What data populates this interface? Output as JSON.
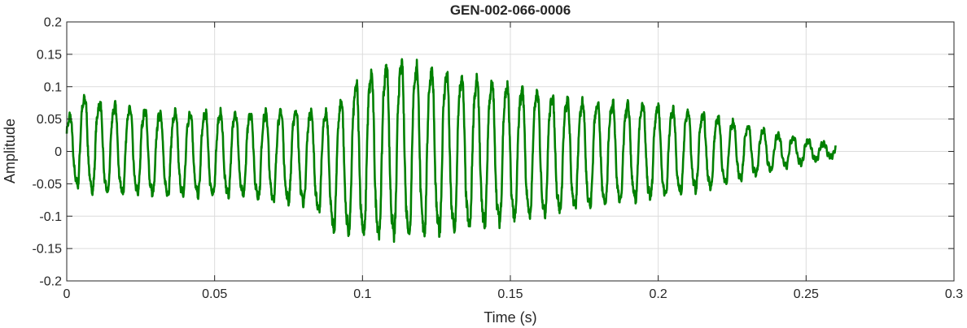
{
  "chart_data": {
    "type": "line",
    "title": "GEN-002-066-0006",
    "xlabel": "Time (s)",
    "ylabel": "Amplitude",
    "xlim": [
      0,
      0.3
    ],
    "ylim": [
      -0.2,
      0.2
    ],
    "xticks": [
      0,
      0.05,
      0.1,
      0.15,
      0.2,
      0.25,
      0.3
    ],
    "xtick_labels": [
      "0",
      "0.05",
      "0.1",
      "0.15",
      "0.2",
      "0.25",
      "0.3"
    ],
    "yticks": [
      -0.2,
      -0.15,
      -0.1,
      -0.05,
      0,
      0.05,
      0.1,
      0.15,
      0.2
    ],
    "ytick_labels": [
      "-0.2",
      "-0.15",
      "-0.1",
      "-0.05",
      "0",
      "0.05",
      "0.1",
      "0.15",
      "0.2"
    ],
    "grid": true,
    "legend": "none",
    "line_color": "#008000",
    "signal": {
      "t_start": 0,
      "t_end": 0.26,
      "oscillation_period_s": 0.0051,
      "envelope": [
        {
          "t": 0.0,
          "upper": 0.05,
          "lower": -0.04
        },
        {
          "t": 0.004,
          "upper": 0.097,
          "lower": -0.065
        },
        {
          "t": 0.01,
          "upper": 0.085,
          "lower": -0.073
        },
        {
          "t": 0.03,
          "upper": 0.07,
          "lower": -0.075
        },
        {
          "t": 0.06,
          "upper": 0.068,
          "lower": -0.078
        },
        {
          "t": 0.08,
          "upper": 0.075,
          "lower": -0.09
        },
        {
          "t": 0.088,
          "upper": 0.07,
          "lower": -0.11
        },
        {
          "t": 0.09,
          "upper": 0.08,
          "lower": -0.135
        },
        {
          "t": 0.1,
          "upper": 0.13,
          "lower": -0.145
        },
        {
          "t": 0.11,
          "upper": 0.155,
          "lower": -0.148
        },
        {
          "t": 0.12,
          "upper": 0.15,
          "lower": -0.145
        },
        {
          "t": 0.13,
          "upper": 0.135,
          "lower": -0.14
        },
        {
          "t": 0.15,
          "upper": 0.115,
          "lower": -0.12
        },
        {
          "t": 0.17,
          "upper": 0.09,
          "lower": -0.1
        },
        {
          "t": 0.2,
          "upper": 0.08,
          "lower": -0.08
        },
        {
          "t": 0.22,
          "upper": 0.06,
          "lower": -0.06
        },
        {
          "t": 0.24,
          "upper": 0.03,
          "lower": -0.03
        },
        {
          "t": 0.26,
          "upper": 0.01,
          "lower": -0.008
        }
      ]
    }
  }
}
